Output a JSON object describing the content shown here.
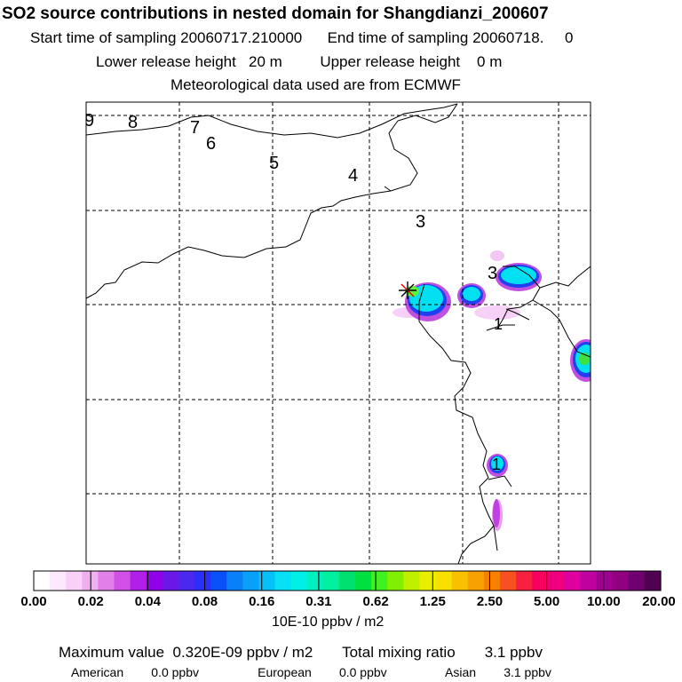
{
  "header": {
    "title": "SO2 source contributions in nested domain for Shangdianzi_200607",
    "start_label": "Start time of sampling",
    "start_value": "20060717.210000",
    "end_label": "End time of sampling",
    "end_value": "20060718.     0",
    "lower_label": "Lower release height",
    "lower_value": "20 m",
    "upper_label": "Upper release height",
    "upper_value": "0 m",
    "met_text": "Meteorological data used are from ECMWF"
  },
  "map": {
    "contour_labels": [
      "9",
      "8",
      "7",
      "6",
      "5",
      "4",
      "3",
      "3",
      "1",
      "1"
    ],
    "receptor_marker": "star-cross"
  },
  "colorbar": {
    "ticks": [
      "0.00",
      "0.02",
      "0.04",
      "0.08",
      "0.16",
      "0.31",
      "0.62",
      "1.25",
      "2.50",
      "5.00",
      "10.00",
      "20.00"
    ],
    "units": "10E-10 ppbv / m2",
    "colors": [
      "#ffffff",
      "#fde8fd",
      "#f8d0f8",
      "#f0b0f0",
      "#e080e8",
      "#d050e8",
      "#b020e8",
      "#9000e8",
      "#6a18e8",
      "#4a28f0",
      "#2a30f8",
      "#0a50f8",
      "#0a80f8",
      "#08a0f8",
      "#08c0f8",
      "#08e0f8",
      "#00f0e8",
      "#00f0c0",
      "#00f0a0",
      "#00e070",
      "#00e040",
      "#40f020",
      "#80f000",
      "#c0f000",
      "#e8f000",
      "#f8e000",
      "#f8c000",
      "#f8a000",
      "#f88000",
      "#f85020",
      "#f82040",
      "#f80060",
      "#f00080",
      "#e000a0",
      "#c000a0",
      "#a00090",
      "#900080",
      "#700070",
      "#500050"
    ]
  },
  "footer": {
    "max_label": "Maximum value",
    "max_value": "0.320E-09 ppbv / m2",
    "total_label": "Total mixing ratio",
    "total_value": "3.1 ppbv",
    "sources": [
      {
        "name": "American",
        "value": "0.0 ppbv"
      },
      {
        "name": "European",
        "value": "0.0 ppbv"
      },
      {
        "name": "Asian",
        "value": "3.1 ppbv"
      }
    ]
  }
}
